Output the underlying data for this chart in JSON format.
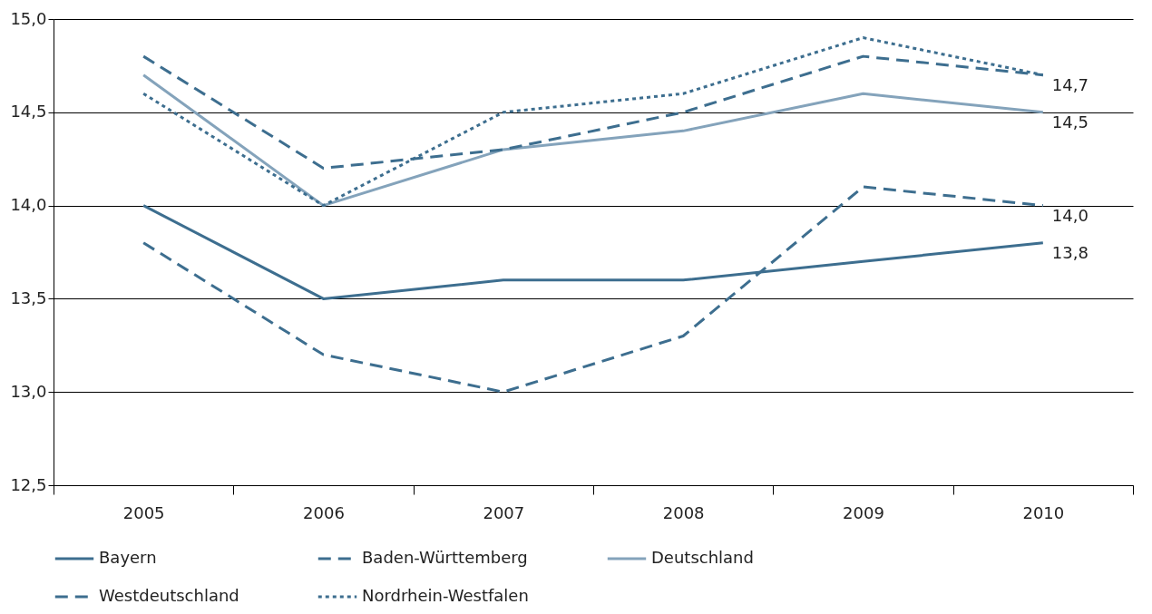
{
  "chart_data": {
    "type": "line",
    "categories": [
      "2005",
      "2006",
      "2007",
      "2008",
      "2009",
      "2010"
    ],
    "series": [
      {
        "name": "Bayern",
        "color": "#3d6e8f",
        "line_style": "solid",
        "values": [
          14.0,
          13.5,
          13.6,
          13.6,
          13.7,
          13.8
        ],
        "value_labels": [
          null,
          null,
          null,
          null,
          null,
          "13,8"
        ]
      },
      {
        "name": "Baden-Württemberg",
        "color": "#3d6e8f",
        "line_style": "dashed",
        "values": [
          13.8,
          13.2,
          13.0,
          13.3,
          14.1,
          14.0
        ],
        "value_labels": [
          null,
          null,
          null,
          null,
          null,
          "14,0"
        ]
      },
      {
        "name": "Deutschland",
        "color": "#84a3bb",
        "line_style": "solid",
        "values": [
          14.7,
          14.0,
          14.3,
          14.4,
          14.6,
          14.5
        ],
        "value_labels": [
          null,
          null,
          null,
          null,
          null,
          "14,5"
        ]
      },
      {
        "name": "Westdeutschland",
        "color": "#3d6e8f",
        "line_style": "dashed",
        "values": [
          14.8,
          14.2,
          14.3,
          14.5,
          14.8,
          14.7
        ],
        "value_labels": [
          null,
          null,
          null,
          null,
          null,
          "14,7"
        ]
      },
      {
        "name": "Nordrhein-Westfalen",
        "color": "#3d6e8f",
        "line_style": "dotted",
        "values": [
          14.6,
          14.0,
          14.5,
          14.6,
          14.9,
          14.7
        ]
      }
    ],
    "ylim": [
      12.5,
      15.0
    ],
    "yticks": [
      {
        "value": 12.5,
        "label": "12,5"
      },
      {
        "value": 13.0,
        "label": "13,0"
      },
      {
        "value": 13.5,
        "label": "13,5"
      },
      {
        "value": 14.0,
        "label": "14,0"
      },
      {
        "value": 14.5,
        "label": "14,5"
      },
      {
        "value": 15.0,
        "label": "15,0"
      }
    ],
    "grid": "y",
    "legend": "bottom",
    "marker": "none"
  }
}
